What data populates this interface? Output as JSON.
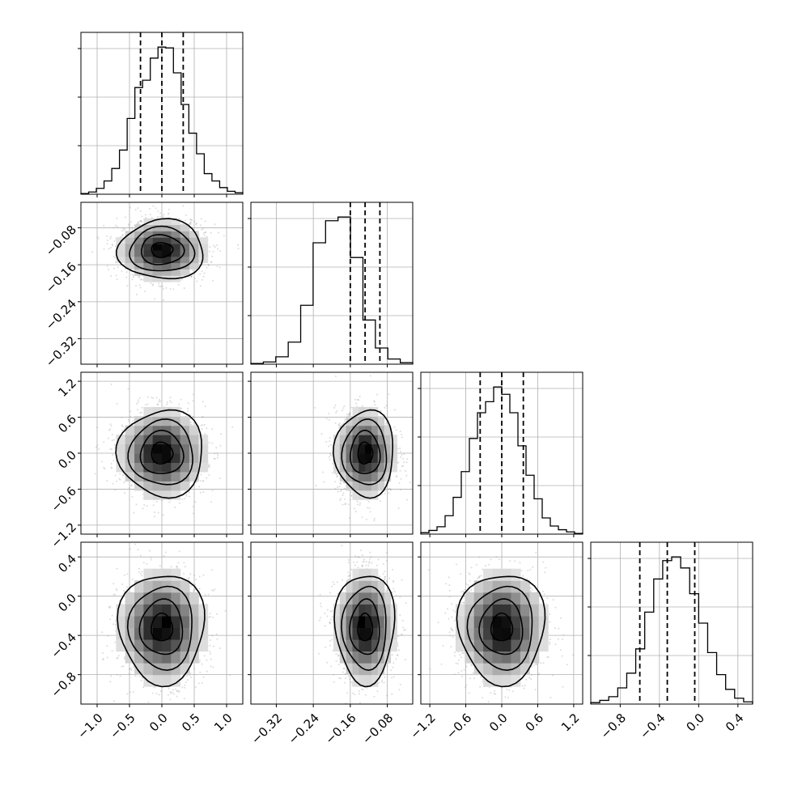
{
  "chart_data": {
    "type": "corner",
    "title": "",
    "grid": true,
    "parameters": [
      {
        "range": [
          -1.25,
          1.25
        ],
        "ticks": [
          -1.0,
          -0.5,
          0.0,
          0.5,
          1.0
        ],
        "tick_labels": [
          "−1.0",
          "−0.5",
          "0.0",
          "0.5",
          "1.0"
        ],
        "quantiles": [
          -0.33,
          0.0,
          0.33
        ],
        "hist": [
          1,
          3,
          8,
          18,
          35,
          60,
          103,
          145,
          155,
          185,
          200,
          199,
          165,
          122,
          83,
          55,
          28,
          18,
          9,
          4,
          2
        ]
      },
      {
        "range": [
          -0.375,
          -0.025
        ],
        "ticks": [
          -0.32,
          -0.24,
          -0.16,
          -0.08
        ],
        "tick_labels": [
          "−0.32",
          "−0.24",
          "−0.16",
          "−0.08"
        ],
        "quantiles": [
          -0.16,
          -0.128,
          -0.096
        ],
        "hist": [
          1,
          3,
          10,
          30,
          80,
          165,
          195,
          200,
          145,
          60,
          22,
          7,
          2
        ]
      },
      {
        "range": [
          -1.35,
          1.35
        ],
        "ticks": [
          -1.2,
          -0.6,
          0.0,
          0.6,
          1.2
        ],
        "tick_labels": [
          "−1.2",
          "−0.6",
          "0.0",
          "0.6",
          "1.2"
        ],
        "quantiles": [
          -0.36,
          0.0,
          0.36
        ],
        "hist": [
          2,
          5,
          10,
          25,
          50,
          85,
          130,
          165,
          180,
          200,
          190,
          165,
          120,
          80,
          48,
          22,
          11,
          6,
          3,
          1
        ]
      },
      {
        "range": [
          -1.1,
          0.55
        ],
        "ticks": [
          -0.8,
          -0.4,
          0.0,
          0.4
        ],
        "tick_labels": [
          "−0.8",
          "−0.4",
          "0.0",
          "0.4"
        ],
        "quantiles": [
          -0.6,
          -0.32,
          -0.04
        ],
        "hist": [
          2,
          5,
          10,
          22,
          42,
          75,
          125,
          170,
          195,
          200,
          185,
          150,
          110,
          70,
          40,
          20,
          8,
          3
        ]
      }
    ],
    "pairs": [
      {
        "row": 1,
        "col": 0,
        "cx": 0.0,
        "cy": -0.128,
        "sx": 0.33,
        "sy": 0.032,
        "jitter": 0.04
      },
      {
        "row": 2,
        "col": 0,
        "cx": 0.0,
        "cy": 0.0,
        "sx": 0.33,
        "sy": 0.36,
        "jitter": 0.06
      },
      {
        "row": 2,
        "col": 1,
        "cx": -0.128,
        "cy": 0.0,
        "sx": 0.032,
        "sy": 0.36,
        "jitter": 0.05
      },
      {
        "row": 3,
        "col": 0,
        "cx": 0.0,
        "cy": -0.32,
        "sx": 0.33,
        "sy": 0.28,
        "jitter": 0.06
      },
      {
        "row": 3,
        "col": 1,
        "cx": -0.128,
        "cy": -0.32,
        "sx": 0.032,
        "sy": 0.28,
        "jitter": 0.05
      },
      {
        "row": 3,
        "col": 2,
        "cx": 0.0,
        "cy": -0.32,
        "sx": 0.36,
        "sy": 0.28,
        "jitter": 0.06
      }
    ],
    "contour_levels": [
      0.5,
      1.0,
      1.5,
      2.0
    ],
    "colors": {
      "line": "#000000",
      "grid": "#b0b0b0",
      "scatter": "#9a9a9a",
      "density_dark": "#000000",
      "density_light": "#ffffff"
    }
  }
}
